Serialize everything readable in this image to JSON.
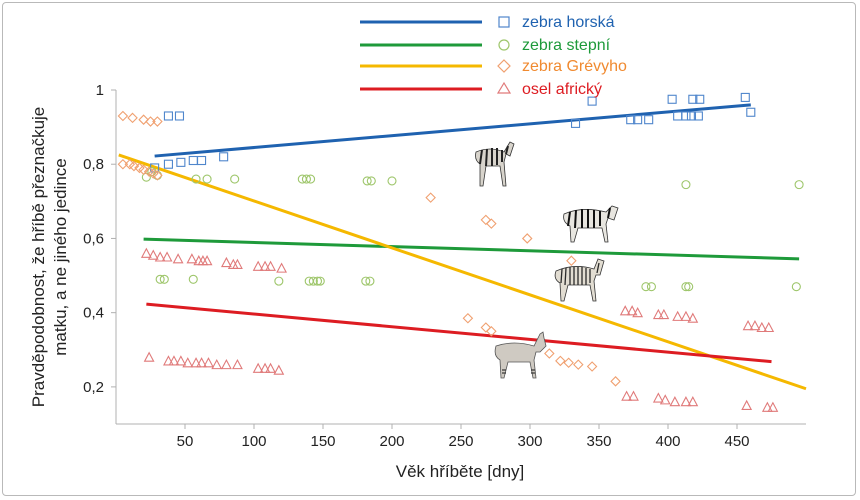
{
  "chart_data": {
    "type": "scatter",
    "xlabel": "Věk hříběte [dny]",
    "ylabel_line1": "Pravděpodobnost, že hříbě přeznačkuje",
    "ylabel_line2": "matku, a ne jiného jedince",
    "xlim": [
      0,
      500
    ],
    "ylim": [
      0.1,
      1.0
    ],
    "x_ticks": [
      50,
      100,
      150,
      200,
      250,
      300,
      350,
      400,
      450
    ],
    "y_ticks": [
      0.2,
      0.4,
      0.6,
      0.8,
      1.0
    ],
    "y_tick_labels": [
      "0,2",
      "0,4",
      "0,6",
      "0,8",
      "1"
    ],
    "grid": false,
    "legend_position": "top-center",
    "series": [
      {
        "name": "zebra horská",
        "color": "#1f62b0",
        "point_color": "#4f86cc",
        "marker": "square",
        "fit_line": [
          [
            28,
            0.822
          ],
          [
            460,
            0.96
          ]
        ],
        "points": [
          [
            28,
            0.79
          ],
          [
            38,
            0.8
          ],
          [
            47,
            0.805
          ],
          [
            56,
            0.81
          ],
          [
            62,
            0.81
          ],
          [
            78,
            0.82
          ],
          [
            38,
            0.93
          ],
          [
            46,
            0.93
          ],
          [
            333,
            0.91
          ],
          [
            345,
            0.97
          ],
          [
            373,
            0.92
          ],
          [
            378,
            0.92
          ],
          [
            386,
            0.92
          ],
          [
            403,
            0.975
          ],
          [
            407,
            0.93
          ],
          [
            413,
            0.93
          ],
          [
            417,
            0.93
          ],
          [
            418,
            0.975
          ],
          [
            422,
            0.93
          ],
          [
            423,
            0.975
          ],
          [
            456,
            0.98
          ],
          [
            460,
            0.94
          ]
        ]
      },
      {
        "name": "zebra stepní",
        "color": "#1e9a3a",
        "point_color": "#9ec66b",
        "marker": "circle",
        "fit_line": [
          [
            20,
            0.598
          ],
          [
            495,
            0.545
          ]
        ],
        "points": [
          [
            22,
            0.765
          ],
          [
            26,
            0.78
          ],
          [
            30,
            0.77
          ],
          [
            58,
            0.76
          ],
          [
            66,
            0.76
          ],
          [
            86,
            0.76
          ],
          [
            135,
            0.76
          ],
          [
            138,
            0.76
          ],
          [
            141,
            0.76
          ],
          [
            182,
            0.755
          ],
          [
            185,
            0.755
          ],
          [
            200,
            0.755
          ],
          [
            413,
            0.745
          ],
          [
            495,
            0.745
          ],
          [
            32,
            0.49
          ],
          [
            35,
            0.49
          ],
          [
            56,
            0.49
          ],
          [
            118,
            0.485
          ],
          [
            140,
            0.485
          ],
          [
            143,
            0.485
          ],
          [
            146,
            0.485
          ],
          [
            148,
            0.485
          ],
          [
            181,
            0.485
          ],
          [
            184,
            0.485
          ],
          [
            384,
            0.47
          ],
          [
            388,
            0.47
          ],
          [
            413,
            0.47
          ],
          [
            415,
            0.47
          ],
          [
            493,
            0.47
          ]
        ]
      },
      {
        "name": "zebra Grévyho",
        "color": "#f5b800",
        "point_color": "#f0a070",
        "marker": "diamond",
        "fit_line": [
          [
            2,
            0.825
          ],
          [
            500,
            0.195
          ]
        ],
        "points": [
          [
            5,
            0.93
          ],
          [
            12,
            0.925
          ],
          [
            20,
            0.92
          ],
          [
            25,
            0.915
          ],
          [
            30,
            0.915
          ],
          [
            5,
            0.8
          ],
          [
            10,
            0.8
          ],
          [
            13,
            0.795
          ],
          [
            17,
            0.79
          ],
          [
            20,
            0.785
          ],
          [
            24,
            0.78
          ],
          [
            27,
            0.775
          ],
          [
            30,
            0.77
          ],
          [
            228,
            0.71
          ],
          [
            268,
            0.65
          ],
          [
            272,
            0.64
          ],
          [
            298,
            0.6
          ],
          [
            330,
            0.54
          ],
          [
            255,
            0.385
          ],
          [
            268,
            0.36
          ],
          [
            272,
            0.35
          ],
          [
            314,
            0.29
          ],
          [
            322,
            0.27
          ],
          [
            328,
            0.265
          ],
          [
            335,
            0.26
          ],
          [
            345,
            0.255
          ],
          [
            362,
            0.215
          ]
        ]
      },
      {
        "name": "osel africký",
        "color": "#dd1c22",
        "point_color": "#e07a7a",
        "marker": "triangle",
        "fit_line": [
          [
            22,
            0.423
          ],
          [
            475,
            0.268
          ]
        ],
        "points": [
          [
            22,
            0.56
          ],
          [
            27,
            0.555
          ],
          [
            32,
            0.55
          ],
          [
            37,
            0.55
          ],
          [
            45,
            0.545
          ],
          [
            55,
            0.545
          ],
          [
            60,
            0.54
          ],
          [
            63,
            0.54
          ],
          [
            66,
            0.54
          ],
          [
            80,
            0.535
          ],
          [
            85,
            0.53
          ],
          [
            88,
            0.53
          ],
          [
            103,
            0.525
          ],
          [
            108,
            0.525
          ],
          [
            112,
            0.525
          ],
          [
            120,
            0.52
          ],
          [
            24,
            0.28
          ],
          [
            38,
            0.27
          ],
          [
            42,
            0.27
          ],
          [
            47,
            0.27
          ],
          [
            52,
            0.265
          ],
          [
            58,
            0.265
          ],
          [
            62,
            0.265
          ],
          [
            67,
            0.265
          ],
          [
            73,
            0.26
          ],
          [
            80,
            0.26
          ],
          [
            88,
            0.26
          ],
          [
            103,
            0.25
          ],
          [
            108,
            0.25
          ],
          [
            112,
            0.25
          ],
          [
            118,
            0.245
          ],
          [
            369,
            0.405
          ],
          [
            374,
            0.405
          ],
          [
            378,
            0.4
          ],
          [
            393,
            0.395
          ],
          [
            397,
            0.395
          ],
          [
            407,
            0.39
          ],
          [
            413,
            0.39
          ],
          [
            418,
            0.385
          ],
          [
            458,
            0.365
          ],
          [
            463,
            0.365
          ],
          [
            468,
            0.36
          ],
          [
            473,
            0.36
          ],
          [
            370,
            0.175
          ],
          [
            375,
            0.175
          ],
          [
            393,
            0.17
          ],
          [
            398,
            0.165
          ],
          [
            405,
            0.16
          ],
          [
            413,
            0.16
          ],
          [
            418,
            0.16
          ],
          [
            457,
            0.15
          ],
          [
            472,
            0.145
          ],
          [
            476,
            0.145
          ]
        ]
      }
    ]
  },
  "legend": [
    {
      "label": "zebra horská"
    },
    {
      "label": "zebra stepní"
    },
    {
      "label": "zebra Grévyho"
    },
    {
      "label": "osel africký"
    }
  ],
  "animals": [
    {
      "icon": "mountain-zebra-photo"
    },
    {
      "icon": "plains-zebra-photo"
    },
    {
      "icon": "grevys-zebra-photo"
    },
    {
      "icon": "african-wild-ass-photo"
    }
  ]
}
